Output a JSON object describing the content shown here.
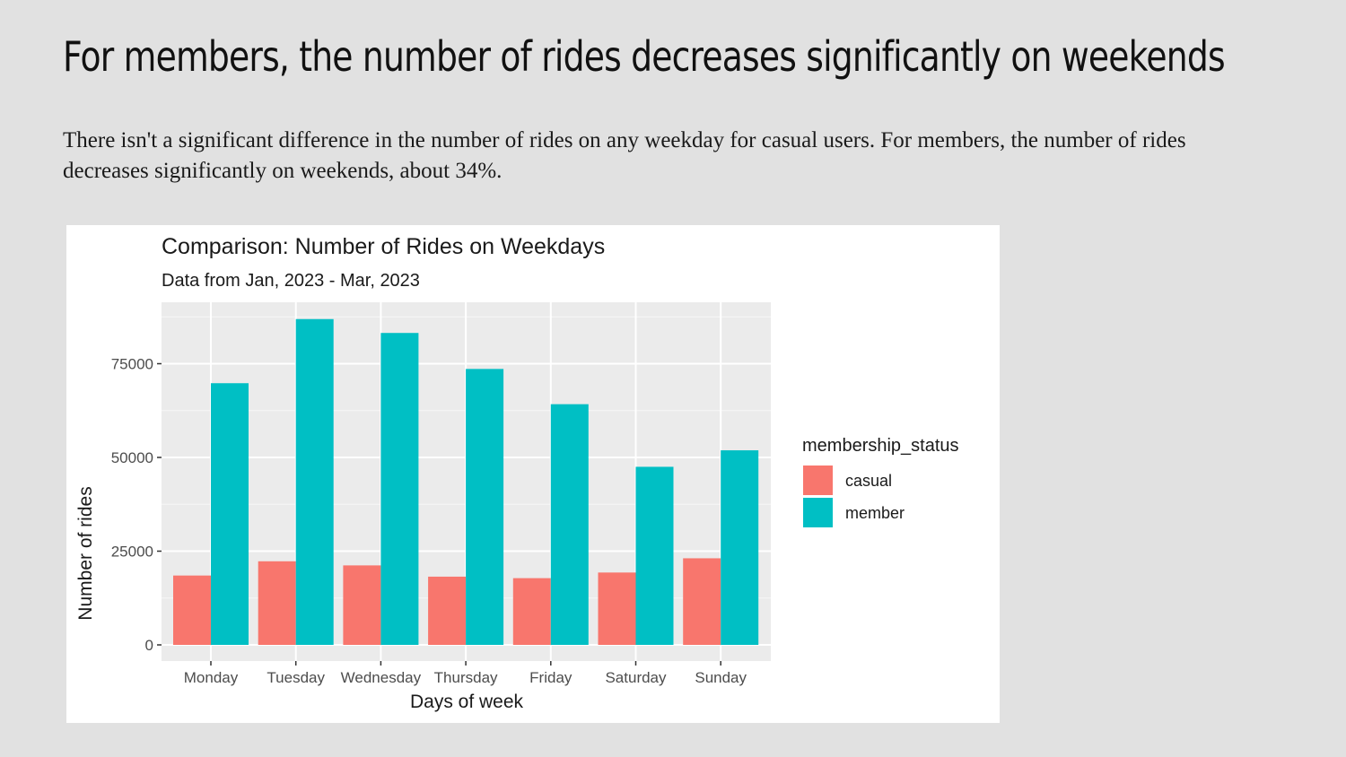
{
  "slide": {
    "title": "For members, the number of rides decreases significantly on weekends",
    "body": "There isn't a significant difference in the number of rides on any weekday for casual users. For members, the number of rides decreases significantly on weekends, about 34%."
  },
  "chart_data": {
    "type": "bar",
    "title": "Comparison: Number of Rides on Weekdays",
    "subtitle": "Data from Jan, 2023 - Mar, 2023",
    "xlabel": "Days of week",
    "ylabel": "Number of rides",
    "categories": [
      "Monday",
      "Tuesday",
      "Wednesday",
      "Thursday",
      "Friday",
      "Saturday",
      "Sunday"
    ],
    "series": [
      {
        "name": "casual",
        "color": "#f8766d",
        "values": [
          18500,
          22300,
          21200,
          18200,
          17800,
          19300,
          23100
        ]
      },
      {
        "name": "member",
        "color": "#00bfc4",
        "values": [
          69800,
          86900,
          83200,
          73600,
          64200,
          47500,
          51900
        ]
      }
    ],
    "ylim": [
      0,
      90000
    ],
    "yticks": [
      0,
      25000,
      50000,
      75000
    ],
    "ytick_labels": [
      "0",
      "25000",
      "50000",
      "75000"
    ],
    "legend_title": "membership_status",
    "legend_position": "right",
    "grid": true,
    "panel_background": "#ebebeb"
  }
}
